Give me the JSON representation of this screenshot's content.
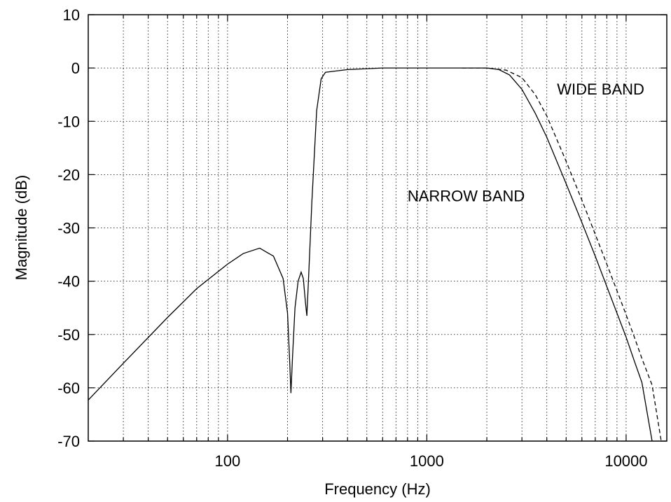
{
  "chart_data": {
    "type": "line",
    "title": "",
    "xlabel": "Frequency (Hz)",
    "ylabel": "Magnitude (dB)",
    "x_scale": "log",
    "xlim": [
      20,
      16000
    ],
    "ylim": [
      -70,
      10
    ],
    "grid": true,
    "x_tick_labels": [
      {
        "value": 100,
        "label": "100"
      },
      {
        "value": 1000,
        "label": "1000"
      },
      {
        "value": 10000,
        "label": "10000"
      }
    ],
    "y_tick_labels": [
      {
        "value": 10,
        "label": "10"
      },
      {
        "value": 0,
        "label": "0"
      },
      {
        "value": -10,
        "label": "-10"
      },
      {
        "value": -20,
        "label": "-20"
      },
      {
        "value": -30,
        "label": "-30"
      },
      {
        "value": -40,
        "label": "-40"
      },
      {
        "value": -50,
        "label": "-50"
      },
      {
        "value": -60,
        "label": "-60"
      },
      {
        "value": -70,
        "label": "-70"
      }
    ],
    "series": [
      {
        "name": "NARROW BAND",
        "style": "solid",
        "color": "#000000",
        "x": [
          20,
          30,
          50,
          70,
          100,
          120,
          145,
          170,
          190,
          200,
          205,
          208,
          212,
          218,
          226,
          234,
          240,
          246,
          250,
          256,
          265,
          280,
          295,
          310,
          400,
          600,
          1000,
          1500,
          2000,
          2300,
          2600,
          3000,
          3500,
          4000,
          5000,
          6000,
          7000,
          8000,
          9000,
          10000,
          11000,
          12000,
          13500
        ],
        "y": [
          -62.3,
          -55.4,
          -46.8,
          -41.4,
          -36.8,
          -34.8,
          -33.8,
          -35.3,
          -39.5,
          -46.0,
          -55.0,
          -61.0,
          -54.0,
          -45.0,
          -40.0,
          -38.3,
          -39.5,
          -44.0,
          -46.5,
          -38.0,
          -25.0,
          -8.0,
          -2.0,
          -0.8,
          -0.3,
          0.0,
          0.0,
          0.0,
          0.0,
          -0.3,
          -1.3,
          -4.0,
          -8.5,
          -13.0,
          -21.7,
          -29.0,
          -35.3,
          -41.0,
          -46.0,
          -50.5,
          -55.0,
          -59.0,
          -70.0
        ]
      },
      {
        "name": "WIDE BAND",
        "style": "dashed",
        "color": "#000000",
        "x": [
          1500,
          2000,
          2500,
          3000,
          3500,
          4000,
          5000,
          6000,
          7000,
          8000,
          9000,
          10000,
          11000,
          12000,
          13500,
          15000
        ],
        "y": [
          0.0,
          0.0,
          -0.4,
          -1.8,
          -5.0,
          -9.0,
          -17.5,
          -24.8,
          -31.2,
          -36.8,
          -41.8,
          -46.3,
          -50.5,
          -54.5,
          -59.5,
          -70.0
        ]
      }
    ],
    "annotations": [
      {
        "text": "WIDE BAND",
        "x": 4500,
        "y": -5
      },
      {
        "text": "NARROW BAND",
        "x": 800,
        "y": -25
      }
    ]
  }
}
